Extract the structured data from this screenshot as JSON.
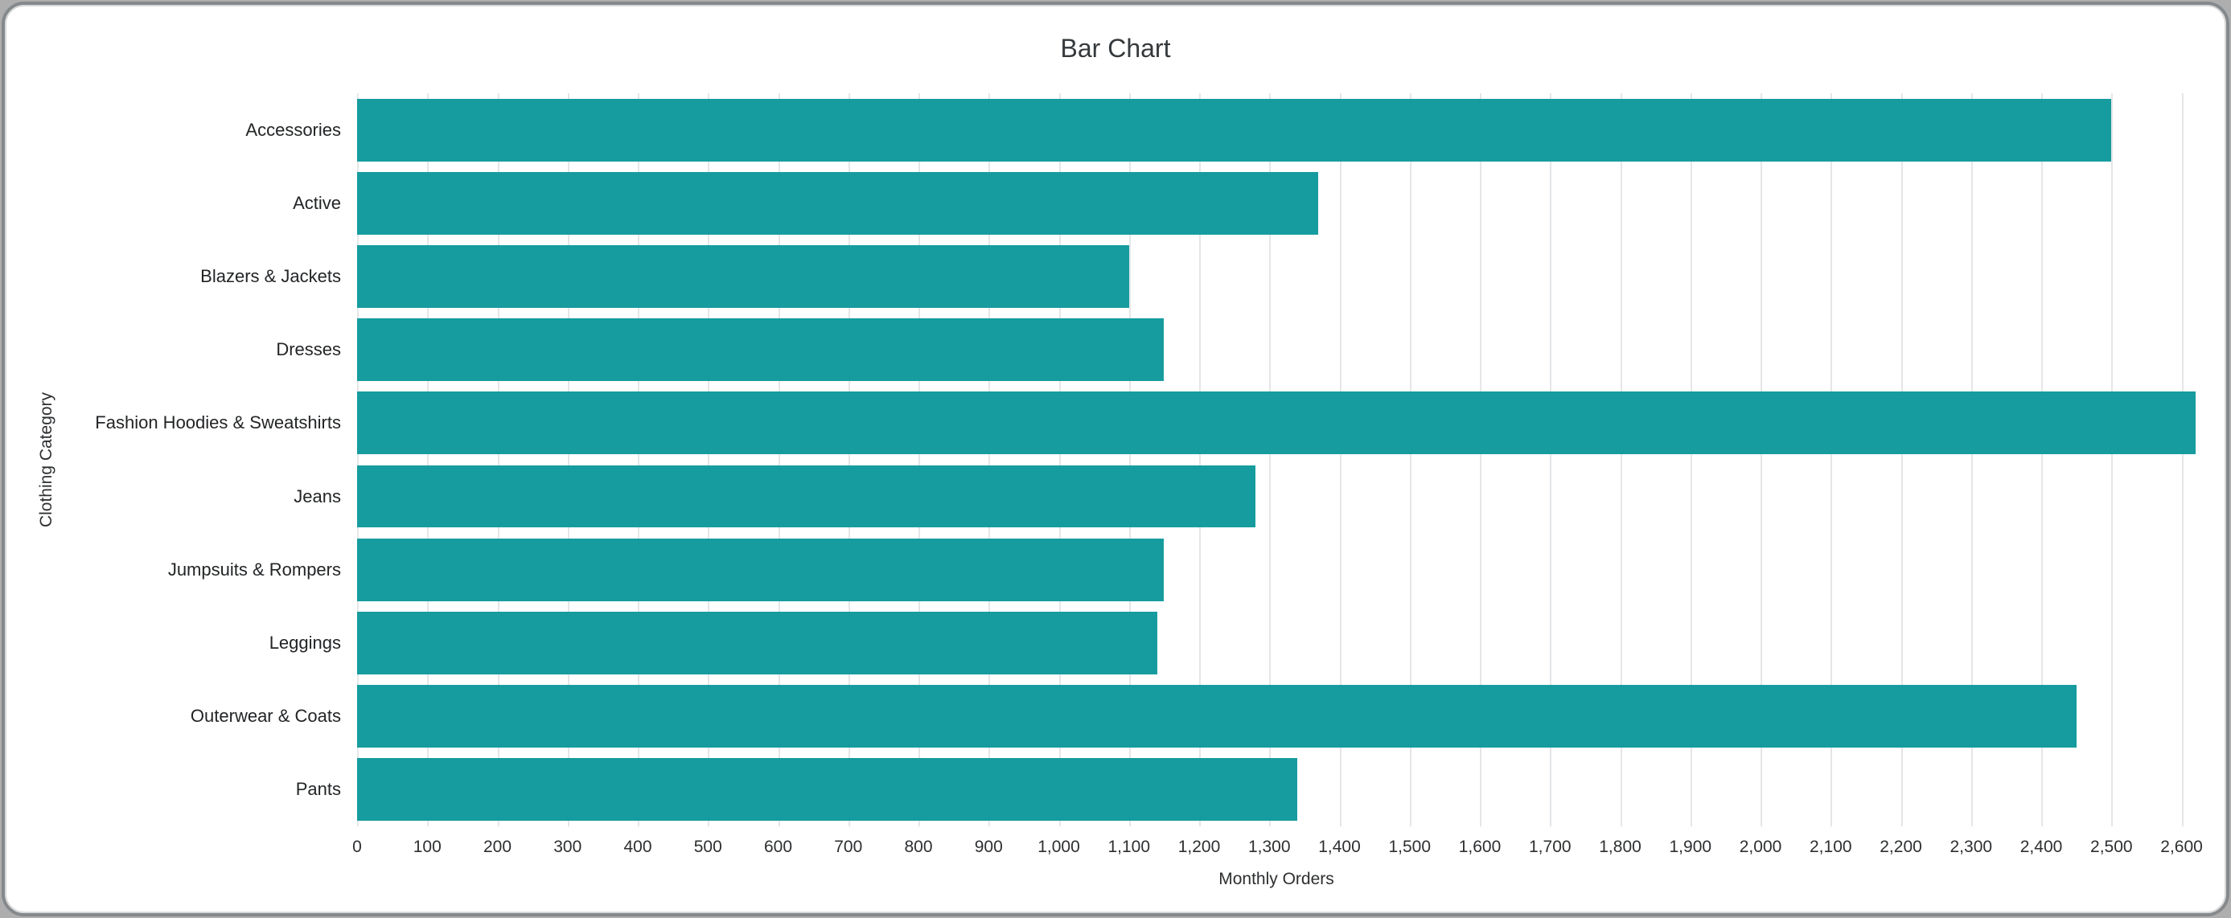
{
  "window": {
    "background_color": "#aeaeae",
    "card_background": "#ffffff",
    "card_border_color": "#85898c"
  },
  "chart_data": {
    "type": "bar",
    "orientation": "horizontal",
    "title": "Bar Chart",
    "xlabel": "Monthly Orders",
    "ylabel": "Clothing Category",
    "categories": [
      "Accessories",
      "Active",
      "Blazers & Jackets",
      "Dresses",
      "Fashion Hoodies & Sweatshirts",
      "Jeans",
      "Jumpsuits & Rompers",
      "Leggings",
      "Outerwear & Coats",
      "Pants"
    ],
    "values": [
      2500,
      1370,
      1100,
      1150,
      2620,
      1280,
      1150,
      1140,
      2450,
      1340
    ],
    "xlim": [
      0,
      2620
    ],
    "tick_step": 100,
    "xtick_values": [
      0,
      100,
      200,
      300,
      400,
      500,
      600,
      700,
      800,
      900,
      1000,
      1100,
      1200,
      1300,
      1400,
      1500,
      1600,
      1700,
      1800,
      1900,
      2000,
      2100,
      2200,
      2300,
      2400,
      2500,
      2600
    ],
    "xtick_labels": [
      "0",
      "100",
      "200",
      "300",
      "400",
      "500",
      "600",
      "700",
      "800",
      "900",
      "1,000",
      "1,100",
      "1,200",
      "1,300",
      "1,400",
      "1,500",
      "1,600",
      "1,700",
      "1,800",
      "1,900",
      "2,000",
      "2,100",
      "2,200",
      "2,300",
      "2,400",
      "2,500",
      "2,600"
    ],
    "bar_color": "#169C9F",
    "gridline_color": "#e4e6e8",
    "grid": true,
    "legend_position": "none"
  }
}
